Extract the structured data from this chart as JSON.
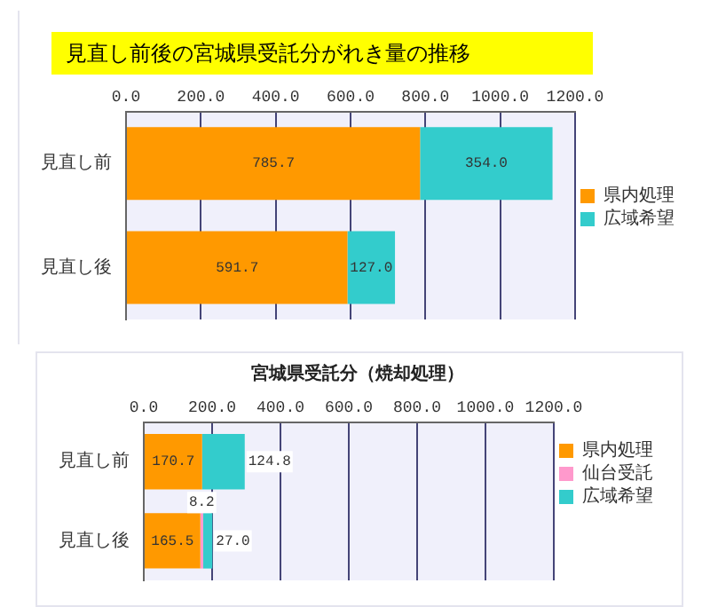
{
  "chart_data": [
    {
      "type": "bar",
      "orientation": "horizontal",
      "stacked": true,
      "title": "見直し前後の宮城県受託分がれき量の推移",
      "categories": [
        "見直し前",
        "見直し後"
      ],
      "series": [
        {
          "name": "県内処理",
          "color": "#ff9900",
          "values": [
            785.7,
            591.7
          ],
          "value_labels": [
            "785.7",
            "591.7"
          ]
        },
        {
          "name": "広域希望",
          "color": "#33cccc",
          "values": [
            354.0,
            127.0
          ],
          "value_labels": [
            "354.0",
            "127.0"
          ]
        }
      ],
      "xlim": [
        0,
        1200
      ],
      "xticks": [
        {
          "value": 0,
          "label": "0.0"
        },
        {
          "value": 200,
          "label": "200.0"
        },
        {
          "value": 400,
          "label": "400.0"
        },
        {
          "value": 600,
          "label": "600.0"
        },
        {
          "value": 800,
          "label": "800.0"
        },
        {
          "value": 1000,
          "label": "1000.0"
        },
        {
          "value": 1200,
          "label": "1200.0"
        }
      ],
      "grid": "x",
      "legend": "right"
    },
    {
      "type": "bar",
      "orientation": "horizontal",
      "stacked": true,
      "title": "宮城県受託分（焼却処理）",
      "categories": [
        "見直し前",
        "見直し後"
      ],
      "series": [
        {
          "name": "県内処理",
          "color": "#ff9900",
          "values": [
            170.7,
            165.5
          ],
          "value_labels": [
            "170.7",
            "165.5"
          ]
        },
        {
          "name": "仙台受託",
          "color": "#ff99cc",
          "values": [
            0,
            8.2
          ],
          "value_labels": [
            null,
            "8.2"
          ]
        },
        {
          "name": "広域希望",
          "color": "#33cccc",
          "values": [
            124.8,
            27.0
          ],
          "value_labels": [
            "124.8",
            "27.0"
          ]
        }
      ],
      "xlim": [
        0,
        1200
      ],
      "xticks": [
        {
          "value": 0,
          "label": "0.0"
        },
        {
          "value": 200,
          "label": "200.0"
        },
        {
          "value": 400,
          "label": "400.0"
        },
        {
          "value": 600,
          "label": "600.0"
        },
        {
          "value": 800,
          "label": "800.0"
        },
        {
          "value": 1000,
          "label": "1000.0"
        },
        {
          "value": 1200,
          "label": "1200.0"
        }
      ],
      "grid": "x",
      "legend": "right"
    }
  ]
}
